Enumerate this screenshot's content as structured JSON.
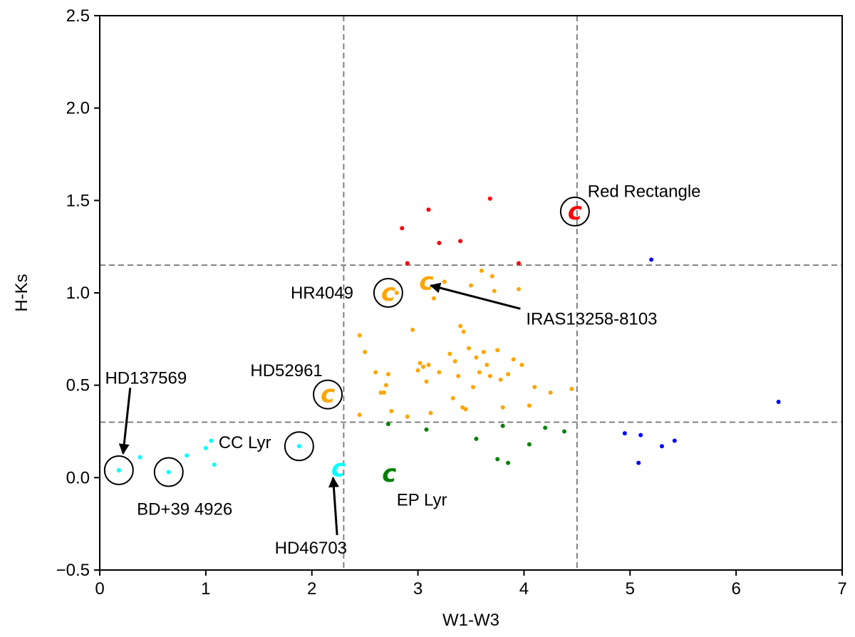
{
  "chart_data": {
    "type": "scatter",
    "xlabel": "W1-W3",
    "ylabel": "H-Ks",
    "xlim": [
      0,
      7
    ],
    "ylim": [
      -0.5,
      2.5
    ],
    "xticks": [
      "0",
      "1",
      "2",
      "3",
      "4",
      "5",
      "6",
      "7"
    ],
    "yticks": [
      "−0.5",
      "0.0",
      "0.5",
      "1.0",
      "1.5",
      "2.0",
      "2.5"
    ],
    "grid": false,
    "reference_lines": {
      "vertical_x": [
        2.3,
        4.5
      ],
      "horizontal_y": [
        0.3,
        1.15
      ],
      "style": "dashed",
      "color": "#808080"
    },
    "series": [
      {
        "color": "#ff0000",
        "points": [
          [
            2.85,
            1.35
          ],
          [
            2.9,
            1.16
          ],
          [
            3.1,
            1.45
          ],
          [
            3.2,
            1.27
          ],
          [
            3.4,
            1.28
          ],
          [
            3.68,
            1.51
          ],
          [
            3.95,
            1.16
          ]
        ]
      },
      {
        "color": "#ffa500",
        "points": [
          [
            2.45,
            0.77
          ],
          [
            2.5,
            0.68
          ],
          [
            2.45,
            0.34
          ],
          [
            2.6,
            0.57
          ],
          [
            2.65,
            0.46
          ],
          [
            2.68,
            0.46
          ],
          [
            2.7,
            0.5
          ],
          [
            2.72,
            0.56
          ],
          [
            2.75,
            0.36
          ],
          [
            2.8,
            1.0
          ],
          [
            2.9,
            0.33
          ],
          [
            2.95,
            0.8
          ],
          [
            3.0,
            0.58
          ],
          [
            3.02,
            0.62
          ],
          [
            3.05,
            0.6
          ],
          [
            3.08,
            0.52
          ],
          [
            3.1,
            0.61
          ],
          [
            3.12,
            0.35
          ],
          [
            3.15,
            0.97
          ],
          [
            3.2,
            0.57
          ],
          [
            3.25,
            1.06
          ],
          [
            3.3,
            0.67
          ],
          [
            3.33,
            0.43
          ],
          [
            3.35,
            0.63
          ],
          [
            3.38,
            0.55
          ],
          [
            3.4,
            0.82
          ],
          [
            3.42,
            0.38
          ],
          [
            3.43,
            0.79
          ],
          [
            3.45,
            0.37
          ],
          [
            3.48,
            0.7
          ],
          [
            3.5,
            1.04
          ],
          [
            3.52,
            0.49
          ],
          [
            3.55,
            0.65
          ],
          [
            3.58,
            0.57
          ],
          [
            3.6,
            1.12
          ],
          [
            3.62,
            0.68
          ],
          [
            3.65,
            0.61
          ],
          [
            3.68,
            0.55
          ],
          [
            3.7,
            1.09
          ],
          [
            3.72,
            1.01
          ],
          [
            3.75,
            0.69
          ],
          [
            3.78,
            0.53
          ],
          [
            3.8,
            0.38
          ],
          [
            3.85,
            0.56
          ],
          [
            3.9,
            0.64
          ],
          [
            3.95,
            1.02
          ],
          [
            3.98,
            0.61
          ],
          [
            4.05,
            0.39
          ],
          [
            4.1,
            0.49
          ],
          [
            4.25,
            0.46
          ],
          [
            4.45,
            0.48
          ]
        ]
      },
      {
        "color": "#008000",
        "points": [
          [
            2.72,
            0.29
          ],
          [
            3.08,
            0.26
          ],
          [
            3.55,
            0.21
          ],
          [
            3.75,
            0.1
          ],
          [
            3.8,
            0.28
          ],
          [
            3.85,
            0.08
          ],
          [
            4.05,
            0.18
          ],
          [
            4.2,
            0.27
          ],
          [
            4.38,
            0.25
          ]
        ]
      },
      {
        "color": "#0000ff",
        "points": [
          [
            4.95,
            0.24
          ],
          [
            5.08,
            0.08
          ],
          [
            5.1,
            0.23
          ],
          [
            5.2,
            1.18
          ],
          [
            5.3,
            0.17
          ],
          [
            5.42,
            0.2
          ],
          [
            6.4,
            0.41
          ]
        ]
      },
      {
        "color": "#00ffff",
        "points": [
          [
            0.18,
            0.04
          ],
          [
            0.38,
            0.11
          ],
          [
            0.65,
            0.03
          ],
          [
            0.82,
            0.12
          ],
          [
            1.0,
            0.16
          ],
          [
            1.05,
            0.2
          ],
          [
            1.08,
            0.07
          ],
          [
            1.88,
            0.17
          ]
        ]
      }
    ],
    "highlighted_points": [
      {
        "x": 4.48,
        "y": 1.44,
        "color": "#ff0000",
        "marker": "c",
        "circled": true
      },
      {
        "x": 3.08,
        "y": 1.06,
        "color": "#ffa500",
        "marker": "c",
        "circled": false
      },
      {
        "x": 2.72,
        "y": 1.0,
        "color": "#ffa500",
        "marker": "c",
        "circled": true
      },
      {
        "x": 2.15,
        "y": 0.45,
        "color": "#ffa500",
        "marker": "c",
        "circled": true
      },
      {
        "x": 2.25,
        "y": 0.05,
        "color": "#00ffff",
        "marker": "c",
        "circled": false
      },
      {
        "x": 2.73,
        "y": 0.02,
        "color": "#008000",
        "marker": "c",
        "circled": false
      },
      {
        "x": 0.18,
        "y": 0.04,
        "color": "#00ffff",
        "marker": "dot",
        "circled": true
      },
      {
        "x": 0.65,
        "y": 0.03,
        "color": "#00ffff",
        "marker": "dot",
        "circled": true
      },
      {
        "x": 1.88,
        "y": 0.17,
        "color": "#00ffff",
        "marker": "dot",
        "circled": true
      }
    ],
    "annotations": [
      {
        "text": "Red Rectangle",
        "x": 4.6,
        "y": 1.55,
        "arrow_to": null
      },
      {
        "text": "HR4049",
        "x": 1.8,
        "y": 1.0,
        "arrow_to": null
      },
      {
        "text": "IRAS13258-8103",
        "x": 4.02,
        "y": 0.86,
        "arrow_to": [
          3.12,
          1.04
        ]
      },
      {
        "text": "HD52961",
        "x": 1.42,
        "y": 0.58,
        "arrow_to": null
      },
      {
        "text": "HD137569",
        "x": 0.05,
        "y": 0.54,
        "arrow_to": [
          0.22,
          0.13
        ]
      },
      {
        "text": "CC Lyr",
        "x": 1.12,
        "y": 0.19,
        "arrow_to": null
      },
      {
        "text": "BD+39 4926",
        "x": 0.35,
        "y": -0.17,
        "arrow_to": null
      },
      {
        "text": "HD46703",
        "x": 1.65,
        "y": -0.38,
        "arrow_to": [
          2.2,
          0.0
        ]
      },
      {
        "text": "EP Lyr",
        "x": 2.8,
        "y": -0.12,
        "arrow_to": null
      }
    ]
  }
}
